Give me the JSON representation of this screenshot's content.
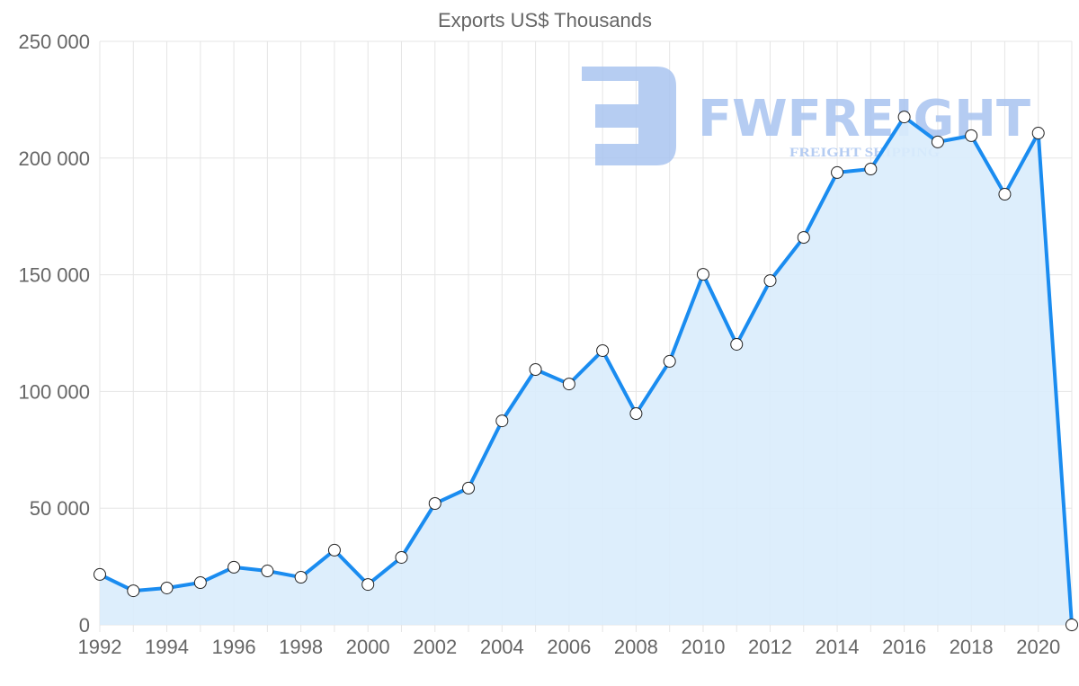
{
  "chart_data": {
    "type": "line",
    "title": "Exports US$ Thousands",
    "xlabel": "",
    "ylabel": "",
    "x": [
      1992,
      1993,
      1994,
      1995,
      1996,
      1997,
      1998,
      1999,
      2000,
      2001,
      2002,
      2003,
      2004,
      2005,
      2006,
      2007,
      2008,
      2009,
      2010,
      2011,
      2012,
      2013,
      2014,
      2015,
      2016,
      2017,
      2018,
      2019,
      2020,
      2021
    ],
    "series": [
      {
        "name": "Exports US$ Thousands",
        "values": [
          21600,
          14600,
          15800,
          18100,
          24700,
          23100,
          20400,
          32000,
          17300,
          28900,
          52000,
          58600,
          87400,
          109400,
          103200,
          117500,
          90500,
          112900,
          150200,
          120200,
          147500,
          166000,
          193800,
          195300,
          217600,
          206900,
          209600,
          184500,
          210700,
          0
        ]
      }
    ],
    "ylim": [
      0,
      250000
    ],
    "yticks": [
      0,
      50000,
      100000,
      150000,
      200000,
      250000
    ],
    "ytick_labels": [
      "0",
      "50 000",
      "100 000",
      "150 000",
      "200 000",
      "250 000"
    ],
    "xtick_labels": [
      "1992",
      "1994",
      "1996",
      "1998",
      "2000",
      "2002",
      "2004",
      "2006",
      "2008",
      "2010",
      "2012",
      "2014",
      "2016",
      "2018",
      "2020"
    ],
    "grid": true,
    "fill": true,
    "colors": {
      "line": "#1a8cf0",
      "fill": "#d9ecfc",
      "grid": "#e5e5e5",
      "watermark": "#a9c4f0"
    }
  },
  "watermark": {
    "brand": "FWFREIGHT",
    "tagline": "FREIGHT SHIPPING"
  }
}
